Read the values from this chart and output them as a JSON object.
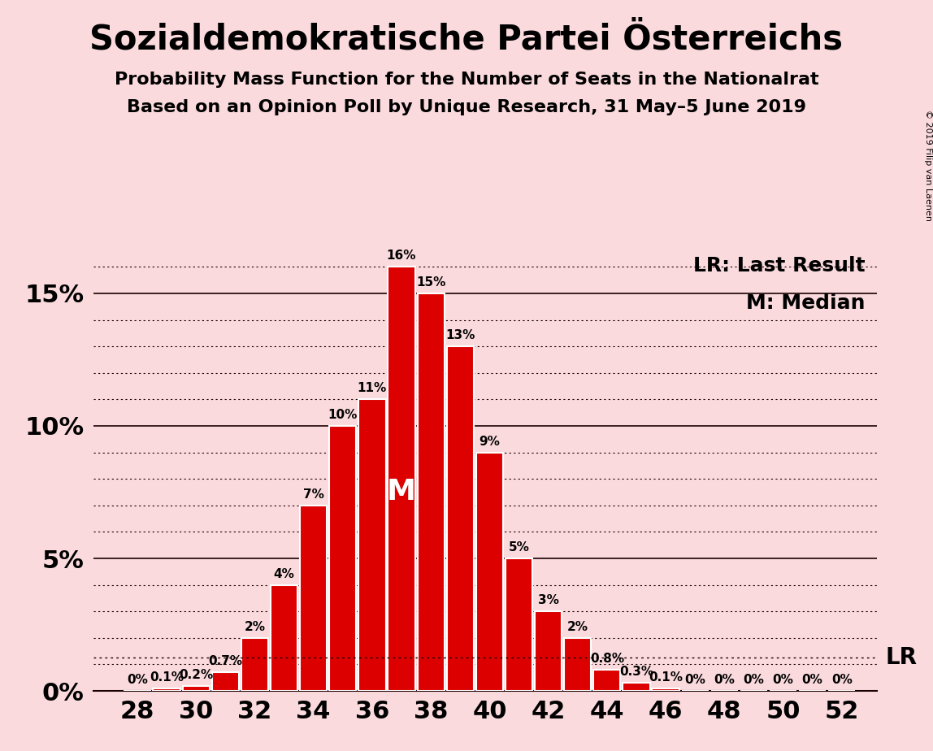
{
  "title": "Sozialdemokratische Partei Österreichs",
  "subtitle1": "Probability Mass Function for the Number of Seats in the Nationalrat",
  "subtitle2": "Based on an Opinion Poll by Unique Research, 31 May–5 June 2019",
  "legend_lr": "LR: Last Result",
  "legend_m": "M: Median",
  "copyright": "© 2019 Filip van Laenen",
  "background_color": "#fadadd",
  "bar_color": "#dd0000",
  "bar_edge_color": "#ffffff",
  "seats": [
    28,
    29,
    30,
    31,
    32,
    33,
    34,
    35,
    36,
    37,
    38,
    39,
    40,
    41,
    42,
    43,
    44,
    45,
    46,
    47,
    48,
    49,
    50,
    51,
    52
  ],
  "probs": [
    0.0,
    0.1,
    0.2,
    0.7,
    2.0,
    4.0,
    7.0,
    10.0,
    11.0,
    16.0,
    15.0,
    13.0,
    9.0,
    5.0,
    3.0,
    2.0,
    0.8,
    0.3,
    0.1,
    0.0,
    0.0,
    0.0,
    0.0,
    0.0,
    0.0
  ],
  "labels": [
    "0%",
    "0.1%",
    "0.2%",
    "0.7%",
    "2%",
    "4%",
    "7%",
    "10%",
    "11%",
    "16%",
    "15%",
    "13%",
    "9%",
    "5%",
    "3%",
    "2%",
    "0.8%",
    "0.3%",
    "0.1%",
    "0%",
    "0%",
    "0%",
    "0%",
    "0%",
    "0%"
  ],
  "median_seat": 37,
  "lr_value": 1.25,
  "ylim": [
    0,
    17
  ],
  "yticks_solid": [
    0,
    5,
    10,
    15
  ],
  "yticks_dotted_step": 1,
  "ytick_labels": [
    "0%",
    "5%",
    "10%",
    "15%"
  ],
  "xtick_start": 28,
  "xtick_end": 52,
  "xtick_step": 2,
  "title_fontsize": 30,
  "subtitle_fontsize": 16,
  "axis_tick_fontsize": 22,
  "bar_label_fontsize": 11,
  "legend_fontsize": 18,
  "median_label_fontsize": 26
}
